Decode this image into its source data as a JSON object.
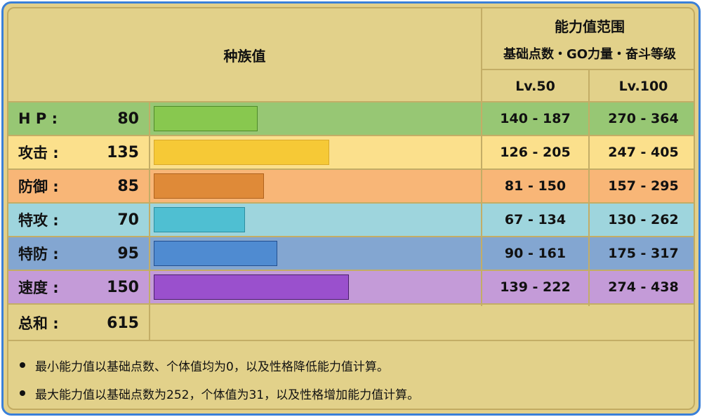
{
  "header": {
    "base_stats_title": "种族值",
    "range_title": "能力值范围",
    "range_subtitle": "基础点数・GO力量・奋斗等级",
    "level_columns": [
      "Lv.50",
      "Lv.100"
    ]
  },
  "rows": [
    {
      "label": "H P :",
      "value": "80",
      "lv50": "140 - 187",
      "lv100": "270 - 364",
      "row_color": "#97c774",
      "bar_color": "#88c84f",
      "bar_border": "#4f8a2a"
    },
    {
      "label": "攻击 :",
      "value": "135",
      "lv50": "126 - 205",
      "lv100": "247 - 405",
      "row_color": "#fbe08c",
      "bar_color": "#f6c936",
      "bar_border": "#d9a92a"
    },
    {
      "label": "防御 :",
      "value": "85",
      "lv50": "81 - 150",
      "lv100": "157 - 295",
      "row_color": "#f8b677",
      "bar_color": "#df8a38",
      "bar_border": "#b0621c"
    },
    {
      "label": "特攻 :",
      "value": "70",
      "lv50": "67 - 134",
      "lv100": "130 - 262",
      "row_color": "#9ed5dd",
      "bar_color": "#4fbfd2",
      "bar_border": "#2d8ea0"
    },
    {
      "label": "特防 :",
      "value": "95",
      "lv50": "90 - 161",
      "lv100": "175 - 317",
      "row_color": "#83a6d1",
      "bar_color": "#4f8bd1",
      "bar_border": "#234f8f"
    },
    {
      "label": "速度 :",
      "value": "150",
      "lv50": "139 - 222",
      "lv100": "274 - 438",
      "row_color": "#c49bd8",
      "bar_color": "#9a50cd",
      "bar_border": "#4a1f6b"
    }
  ],
  "total": {
    "label": "总和 :",
    "value": "615"
  },
  "notes": [
    "最小能力值以基础点数、个体值均为0，以及性格降低能力值计算。",
    "最大能力值以基础点数为252，个体值为31，以及性格增加能力值计算。"
  ],
  "chart_data": {
    "type": "bar",
    "title": "种族值",
    "orientation": "horizontal",
    "categories": [
      "HP",
      "攻击",
      "防御",
      "特攻",
      "特防",
      "速度"
    ],
    "values": [
      80,
      135,
      85,
      70,
      95,
      150
    ],
    "total": 615,
    "colors": [
      "#88c84f",
      "#f6c936",
      "#df8a38",
      "#4fbfd2",
      "#4f8bd1",
      "#9a50cd"
    ],
    "table": {
      "columns": [
        "Lv.50",
        "Lv.100"
      ],
      "ranges": {
        "HP": [
          "140 - 187",
          "270 - 364"
        ],
        "攻击": [
          "126 - 205",
          "247 - 405"
        ],
        "防御": [
          "81 - 150",
          "157 - 295"
        ],
        "特攻": [
          "67 - 134",
          "130 - 262"
        ],
        "特防": [
          "90 - 161",
          "175 - 317"
        ],
        "速度": [
          "139 - 222",
          "274 - 438"
        ]
      }
    },
    "grid": false,
    "legend": "none"
  }
}
